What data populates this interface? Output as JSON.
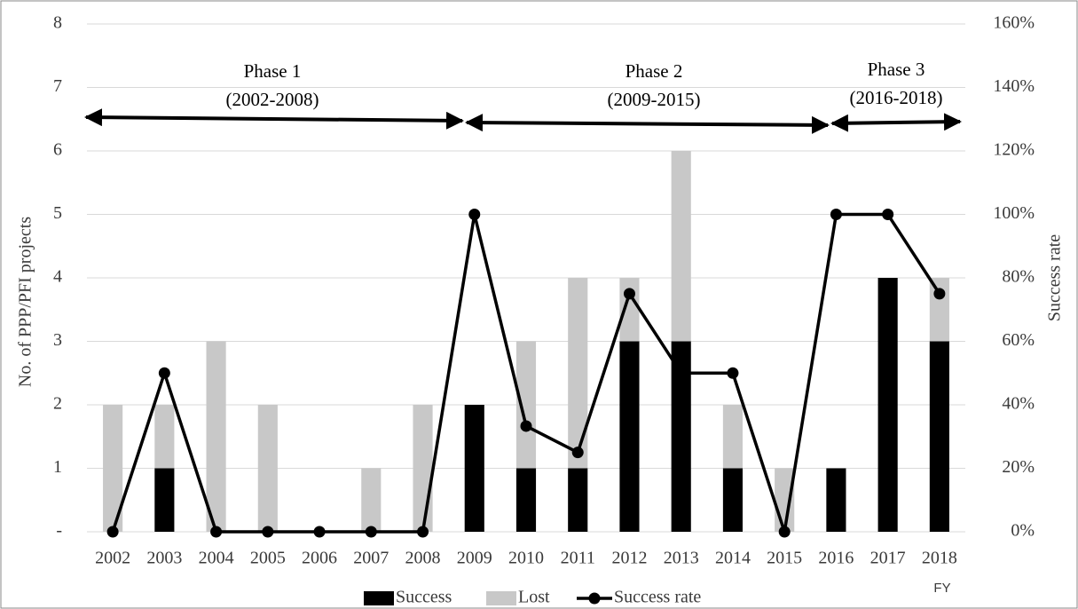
{
  "chart_data": {
    "type": "bar",
    "categories": [
      "2002",
      "2003",
      "2004",
      "2005",
      "2006",
      "2007",
      "2008",
      "2009",
      "2010",
      "2011",
      "2012",
      "2013",
      "2014",
      "2015",
      "2016",
      "2017",
      "2018"
    ],
    "series": [
      {
        "name": "Success",
        "color": "#000000",
        "values": [
          0,
          1,
          0,
          0,
          0,
          0,
          0,
          2,
          1,
          1,
          3,
          3,
          1,
          0,
          1,
          4,
          3
        ]
      },
      {
        "name": "Lost",
        "color": "#c8c8c8",
        "values": [
          2,
          1,
          3,
          2,
          0,
          1,
          2,
          0,
          2,
          3,
          1,
          3,
          1,
          1,
          0,
          0,
          1
        ]
      },
      {
        "name": "Success rate",
        "color": "#000000",
        "type": "line",
        "axis": "y2",
        "values": [
          0,
          50,
          0,
          0,
          0,
          0,
          0,
          100,
          33.3,
          25,
          75,
          50,
          50,
          0,
          100,
          100,
          75
        ]
      }
    ],
    "ylabel": "No. of PPP/PFI projects",
    "y2label": "Success rate",
    "xlabel": "FY",
    "ylim": [
      0,
      8
    ],
    "yticks": [
      {
        "value": 0,
        "label": "-"
      },
      1,
      2,
      3,
      4,
      5,
      6,
      7,
      8
    ],
    "y2lim": [
      0,
      160
    ],
    "y2ticks": [
      {
        "value": 0,
        "label": "0%"
      },
      {
        "value": 20,
        "label": "20%"
      },
      {
        "value": 40,
        "label": "40%"
      },
      {
        "value": 60,
        "label": "60%"
      },
      {
        "value": 80,
        "label": "80%"
      },
      {
        "value": 100,
        "label": "100%"
      },
      {
        "value": 120,
        "label": "120%"
      },
      {
        "value": 140,
        "label": "140%"
      },
      {
        "value": 160,
        "label": "160%"
      }
    ],
    "grid": true,
    "stacked": true,
    "annotations": [
      {
        "title": "Phase 1",
        "range": "(2002-2008)"
      },
      {
        "title": "Phase 2",
        "range": "(2009-2015)"
      },
      {
        "title": "Phase 3",
        "range": "(2016-2018)"
      }
    ]
  }
}
